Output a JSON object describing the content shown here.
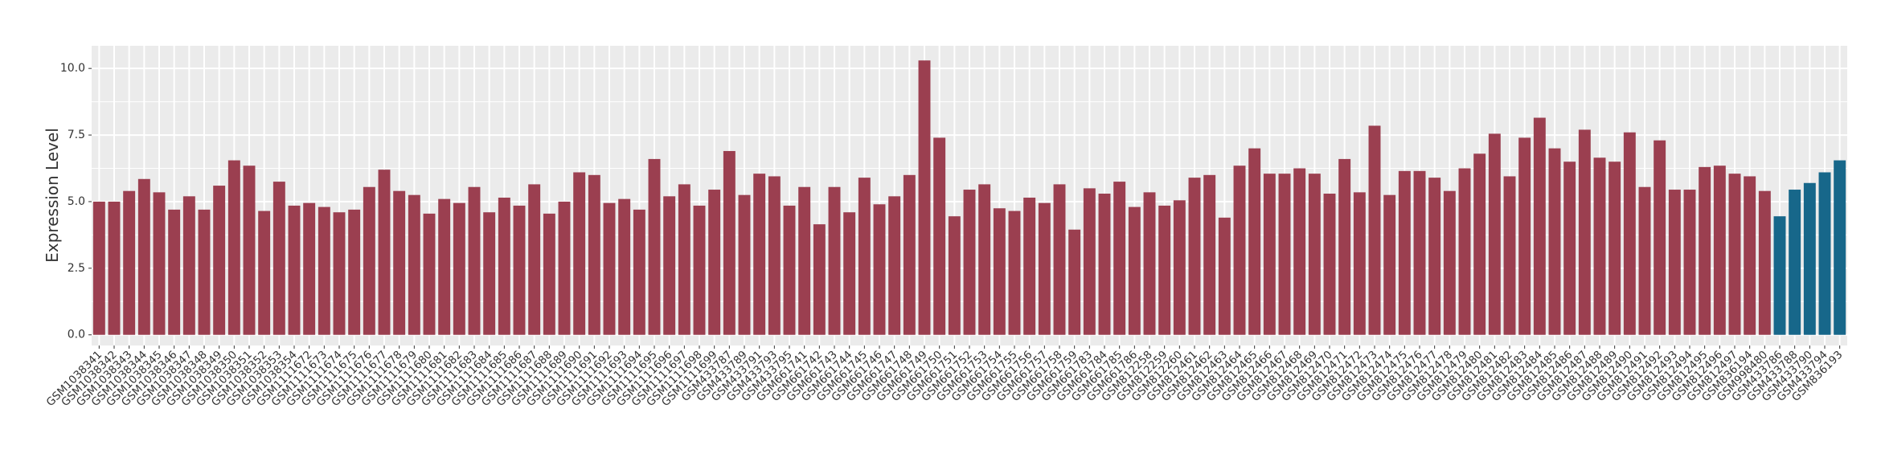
{
  "chart_data": {
    "type": "bar",
    "y_label": "Expression Level",
    "categories": [
      "GSM1038341",
      "GSM1038342",
      "GSM1038343",
      "GSM1038344",
      "GSM1038345",
      "GSM1038346",
      "GSM1038347",
      "GSM1038348",
      "GSM1038349",
      "GSM1038350",
      "GSM1038351",
      "GSM1038352",
      "GSM1038353",
      "GSM1038354",
      "GSM1111672",
      "GSM1111673",
      "GSM1111674",
      "GSM1111675",
      "GSM1111676",
      "GSM1111677",
      "GSM1111678",
      "GSM1111679",
      "GSM1111680",
      "GSM1111681",
      "GSM1111682",
      "GSM1111683",
      "GSM1111684",
      "GSM1111685",
      "GSM1111686",
      "GSM1111687",
      "GSM1111688",
      "GSM1111689",
      "GSM1111690",
      "GSM1111691",
      "GSM1111692",
      "GSM1111693",
      "GSM1111694",
      "GSM1111695",
      "GSM1111696",
      "GSM1111697",
      "GSM1111698",
      "GSM1111699",
      "GSM433787",
      "GSM433789",
      "GSM433791",
      "GSM433793",
      "GSM433795",
      "GSM661741",
      "GSM661742",
      "GSM661743",
      "GSM661744",
      "GSM661745",
      "GSM661746",
      "GSM661747",
      "GSM661748",
      "GSM661749",
      "GSM661750",
      "GSM661751",
      "GSM661752",
      "GSM661753",
      "GSM661754",
      "GSM661755",
      "GSM661756",
      "GSM661757",
      "GSM661758",
      "GSM661759",
      "GSM661783",
      "GSM661784",
      "GSM661785",
      "GSM661786",
      "GSM812258",
      "GSM812259",
      "GSM812260",
      "GSM812461",
      "GSM812462",
      "GSM812463",
      "GSM812464",
      "GSM812465",
      "GSM812466",
      "GSM812467",
      "GSM812468",
      "GSM812469",
      "GSM812470",
      "GSM812471",
      "GSM812472",
      "GSM812473",
      "GSM812474",
      "GSM812475",
      "GSM812476",
      "GSM812477",
      "GSM812478",
      "GSM812479",
      "GSM812480",
      "GSM812481",
      "GSM812482",
      "GSM812483",
      "GSM812484",
      "GSM812485",
      "GSM812486",
      "GSM812487",
      "GSM812488",
      "GSM812489",
      "GSM812490",
      "GSM812491",
      "GSM812492",
      "GSM812493",
      "GSM812494",
      "GSM812495",
      "GSM812496",
      "GSM812497",
      "GSM836194",
      "GSM998480",
      "GSM433786",
      "GSM433788",
      "GSM433790",
      "GSM433794",
      "GSM836193"
    ],
    "values": [
      5.0,
      5.0,
      5.4,
      5.85,
      5.35,
      4.7,
      5.2,
      4.7,
      5.6,
      6.55,
      6.35,
      4.65,
      5.75,
      4.85,
      4.95,
      4.8,
      4.6,
      4.7,
      5.55,
      6.2,
      5.4,
      5.25,
      4.55,
      5.1,
      4.95,
      5.55,
      4.6,
      5.15,
      4.85,
      5.65,
      4.55,
      5.0,
      6.1,
      6.0,
      4.95,
      5.1,
      4.7,
      6.6,
      5.2,
      5.65,
      4.85,
      5.45,
      6.9,
      5.25,
      6.05,
      5.95,
      4.85,
      5.55,
      4.15,
      5.55,
      4.6,
      5.9,
      4.9,
      5.2,
      6.0,
      10.3,
      7.4,
      4.45,
      5.45,
      5.65,
      4.75,
      4.65,
      5.15,
      4.95,
      5.65,
      3.95,
      5.5,
      5.3,
      5.75,
      4.8,
      5.35,
      4.85,
      5.05,
      5.9,
      6.0,
      4.4,
      6.35,
      7.0,
      6.05,
      6.05,
      6.25,
      6.05,
      5.3,
      6.6,
      5.35,
      7.85,
      5.25,
      6.15,
      6.15,
      5.9,
      5.4,
      6.25,
      6.8,
      7.55,
      5.95,
      7.4,
      8.15,
      7.0,
      6.5,
      7.7,
      6.65,
      6.5,
      7.6,
      5.55,
      7.3,
      5.45,
      5.45,
      6.3,
      6.35,
      6.05,
      5.95,
      5.4,
      4.45,
      5.45,
      5.7,
      6.1,
      6.55
    ],
    "colors": [
      "#9b3f50",
      "#9b3f50",
      "#9b3f50",
      "#9b3f50",
      "#9b3f50",
      "#9b3f50",
      "#9b3f50",
      "#9b3f50",
      "#9b3f50",
      "#9b3f50",
      "#9b3f50",
      "#9b3f50",
      "#9b3f50",
      "#9b3f50",
      "#9b3f50",
      "#9b3f50",
      "#9b3f50",
      "#9b3f50",
      "#9b3f50",
      "#9b3f50",
      "#9b3f50",
      "#9b3f50",
      "#9b3f50",
      "#9b3f50",
      "#9b3f50",
      "#9b3f50",
      "#9b3f50",
      "#9b3f50",
      "#9b3f50",
      "#9b3f50",
      "#9b3f50",
      "#9b3f50",
      "#9b3f50",
      "#9b3f50",
      "#9b3f50",
      "#9b3f50",
      "#9b3f50",
      "#9b3f50",
      "#9b3f50",
      "#9b3f50",
      "#9b3f50",
      "#9b3f50",
      "#9b3f50",
      "#9b3f50",
      "#9b3f50",
      "#9b3f50",
      "#9b3f50",
      "#9b3f50",
      "#9b3f50",
      "#9b3f50",
      "#9b3f50",
      "#9b3f50",
      "#9b3f50",
      "#9b3f50",
      "#9b3f50",
      "#9b3f50",
      "#9b3f50",
      "#9b3f50",
      "#9b3f50",
      "#9b3f50",
      "#9b3f50",
      "#9b3f50",
      "#9b3f50",
      "#9b3f50",
      "#9b3f50",
      "#9b3f50",
      "#9b3f50",
      "#9b3f50",
      "#9b3f50",
      "#9b3f50",
      "#9b3f50",
      "#9b3f50",
      "#9b3f50",
      "#9b3f50",
      "#9b3f50",
      "#9b3f50",
      "#9b3f50",
      "#9b3f50",
      "#9b3f50",
      "#9b3f50",
      "#9b3f50",
      "#9b3f50",
      "#9b3f50",
      "#9b3f50",
      "#9b3f50",
      "#9b3f50",
      "#9b3f50",
      "#9b3f50",
      "#9b3f50",
      "#9b3f50",
      "#9b3f50",
      "#9b3f50",
      "#9b3f50",
      "#9b3f50",
      "#9b3f50",
      "#9b3f50",
      "#9b3f50",
      "#9b3f50",
      "#9b3f50",
      "#9b3f50",
      "#9b3f50",
      "#9b3f50",
      "#9b3f50",
      "#9b3f50",
      "#9b3f50",
      "#9b3f50",
      "#9b3f50",
      "#9b3f50",
      "#9b3f50",
      "#9b3f50",
      "#9b3f50",
      "#9b3f50",
      "#17678a",
      "#17678a",
      "#17678a",
      "#17678a",
      "#17678a"
    ],
    "ylim": [
      -0.4,
      10.85
    ],
    "yticks": [
      {
        "value": 0,
        "label": "0.0"
      },
      {
        "value": 2.5,
        "label": "2.5"
      },
      {
        "value": 5,
        "label": "5.0"
      },
      {
        "value": 7.5,
        "label": "7.5"
      },
      {
        "value": 10,
        "label": "10.0"
      }
    ],
    "grid": true
  }
}
